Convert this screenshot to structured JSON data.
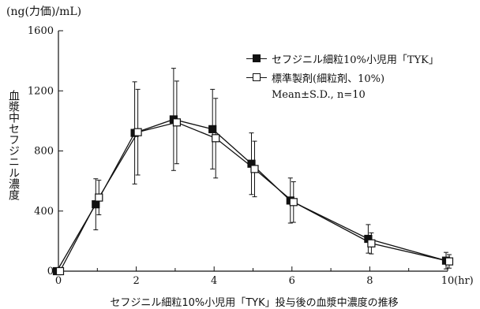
{
  "chart_data": {
    "type": "line",
    "unit_label": "(ng(力価)/mL)",
    "xlabel": "セフジニル細粒10%小児用「TYK」投与後の血漿中濃度の推移",
    "ylabel": "血漿中セフジニル濃度",
    "x_unit": "(hr)",
    "xlim": [
      0,
      10
    ],
    "ylim": [
      0,
      1600
    ],
    "xticks": [
      0,
      2,
      4,
      6,
      8,
      10
    ],
    "yticks": [
      0,
      400,
      800,
      1200,
      1600
    ],
    "x_tick_labels": [
      "0",
      "2",
      "4",
      "6",
      "8",
      "10"
    ],
    "y_tick_labels": [
      "0",
      "400",
      "800",
      "1200",
      "1600"
    ],
    "legend_placement": "top-right",
    "annotation": "Mean±S.D., n=10",
    "series": [
      {
        "name": "セフジニル細粒10%小児用「TYK」",
        "marker": "filled-square",
        "x": [
          0,
          1,
          2,
          3,
          4,
          5,
          6,
          8,
          10
        ],
        "y": [
          0,
          445,
          920,
          1010,
          945,
          715,
          470,
          215,
          70
        ],
        "error": [
          0,
          170,
          340,
          340,
          265,
          205,
          150,
          95,
          55
        ],
        "error_band": [
          [
            0,
            0
          ],
          [
            275,
            615
          ],
          [
            580,
            1260
          ],
          [
            670,
            1350
          ],
          [
            680,
            1210
          ],
          [
            510,
            920
          ],
          [
            320,
            620
          ],
          [
            120,
            310
          ],
          [
            15,
            125
          ]
        ]
      },
      {
        "name": "標準製剤(細粒剤、10%)",
        "marker": "open-square",
        "x": [
          0,
          1,
          2,
          3,
          4,
          5,
          6,
          8,
          10
        ],
        "y": [
          0,
          490,
          925,
          990,
          885,
          680,
          460,
          185,
          65
        ],
        "error": [
          0,
          115,
          285,
          275,
          265,
          185,
          135,
          70,
          45
        ],
        "error_band": [
          [
            0,
            0
          ],
          [
            375,
            605
          ],
          [
            640,
            1210
          ],
          [
            715,
            1265
          ],
          [
            620,
            1150
          ],
          [
            495,
            865
          ],
          [
            325,
            595
          ],
          [
            115,
            255
          ],
          [
            20,
            110
          ]
        ]
      }
    ],
    "colors": {
      "line": "#111111",
      "axis": "#111111"
    }
  }
}
